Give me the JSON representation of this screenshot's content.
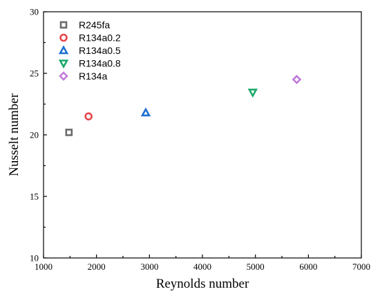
{
  "chart_data": {
    "type": "scatter",
    "title": "",
    "xlabel": "Reynolds number",
    "ylabel": "Nusselt number",
    "xlim": [
      1000,
      7000
    ],
    "ylim": [
      10,
      30
    ],
    "xticks": [
      "1000",
      "2000",
      "3000",
      "4000",
      "5000",
      "6000",
      "7000"
    ],
    "yticks": [
      "10",
      "15",
      "20",
      "25",
      "30"
    ],
    "grid": false,
    "legend_position": "top-left",
    "series": [
      {
        "name": "R245fa",
        "marker": "square",
        "color": "#6b6b6b",
        "x": 1480,
        "y": 20.2
      },
      {
        "name": "R134a0.2",
        "marker": "circle",
        "color": "#e8474a",
        "x": 1850,
        "y": 21.5
      },
      {
        "name": "R134a0.5",
        "marker": "triangle-up",
        "color": "#1f6fd1",
        "x": 2930,
        "y": 21.8
      },
      {
        "name": "R134a0.8",
        "marker": "triangle-down",
        "color": "#1aa86a",
        "x": 4950,
        "y": 23.45
      },
      {
        "name": "R134a",
        "marker": "diamond",
        "color": "#c07ad8",
        "x": 5780,
        "y": 24.5
      }
    ]
  }
}
